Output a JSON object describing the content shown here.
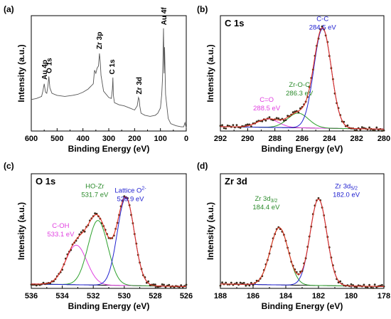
{
  "chart_data": [
    {
      "panel": "(a)",
      "type": "line",
      "title": "",
      "xlabel": "Binding Energy (eV)",
      "ylabel": "Intensity (a.u.)",
      "xlim": [
        600,
        0
      ],
      "xticks": [
        "600",
        "500",
        "400",
        "300",
        "200",
        "100",
        "0"
      ],
      "series": [
        {
          "color": "#555555",
          "x": [
            600,
            580,
            560,
            555,
            550,
            545,
            540,
            535,
            532,
            528,
            520,
            500,
            470,
            440,
            420,
            400,
            380,
            360,
            355,
            350,
            345,
            340,
            336,
            333,
            330,
            320,
            300,
            290,
            286,
            284,
            282,
            278,
            260,
            240,
            220,
            200,
            190,
            185,
            182,
            180,
            175,
            160,
            140,
            120,
            110,
            100,
            95,
            92,
            90,
            88,
            86,
            84,
            80,
            70,
            60,
            40,
            20,
            10,
            5,
            0
          ],
          "y": [
            0.3,
            0.31,
            0.33,
            0.38,
            0.45,
            0.37,
            0.36,
            0.44,
            0.52,
            0.41,
            0.36,
            0.34,
            0.33,
            0.34,
            0.35,
            0.37,
            0.4,
            0.45,
            0.58,
            0.55,
            0.6,
            0.62,
            0.74,
            0.66,
            0.53,
            0.38,
            0.32,
            0.31,
            0.4,
            0.51,
            0.34,
            0.27,
            0.25,
            0.24,
            0.22,
            0.2,
            0.24,
            0.32,
            0.3,
            0.24,
            0.17,
            0.15,
            0.14,
            0.15,
            0.17,
            0.22,
            0.35,
            0.5,
            0.72,
            0.98,
            0.55,
            0.8,
            0.35,
            0.12,
            0.07,
            0.05,
            0.04,
            0.04,
            0.08,
            0.03
          ]
        }
      ],
      "annotations": [
        {
          "text": "Au 4p",
          "x": 548,
          "y": 0.49,
          "color": "#000000",
          "vertical": true
        },
        {
          "text": "O 1s",
          "x": 530,
          "y": 0.55,
          "color": "#000000",
          "vertical": true
        },
        {
          "text": "Zr 3p",
          "x": 336,
          "y": 0.78,
          "color": "#000000",
          "vertical": true
        },
        {
          "text": "C 1s",
          "x": 286,
          "y": 0.54,
          "color": "#000000",
          "vertical": true
        },
        {
          "text": "Zr 3d",
          "x": 182,
          "y": 0.35,
          "color": "#000000",
          "vertical": true
        },
        {
          "text": "Au 4f",
          "x": 86,
          "y": 1.01,
          "color": "#000000",
          "vertical": true
        }
      ]
    },
    {
      "panel": "(b)",
      "type": "line",
      "title": "C 1s",
      "xlabel": "Binding Energy (eV)",
      "ylabel": "Intensity (a.u.)",
      "xlim": [
        292,
        280
      ],
      "xticks": [
        "292",
        "290",
        "288",
        "286",
        "284",
        "282",
        "280"
      ],
      "background": 0.03,
      "peaks": [
        {
          "name": "C=O",
          "center": 288.5,
          "height": 0.08,
          "fwhm": 1.8,
          "color": "#e040e0"
        },
        {
          "name": "Zr-O-C",
          "center": 286.3,
          "height": 0.14,
          "fwhm": 1.8,
          "color": "#2ca02c"
        },
        {
          "name": "C-C",
          "center": 284.5,
          "height": 0.95,
          "fwhm": 1.5,
          "color": "#2020d0"
        }
      ],
      "annotations": [
        {
          "lines": [
            "C=O",
            "288.5 eV"
          ],
          "x": 288.6,
          "y": 0.28,
          "color": "#e040e0"
        },
        {
          "lines": [
            "Zr-O-C",
            "286.3 eV"
          ],
          "x": 286.2,
          "y": 0.42,
          "color": "#2a8a2a"
        },
        {
          "lines": [
            "C-C",
            "284.5 eV"
          ],
          "x": 284.5,
          "y": 1.05,
          "color": "#2020d0"
        }
      ]
    },
    {
      "panel": "(c)",
      "type": "line",
      "title": "O 1s",
      "xlabel": "Binding Energy (eV)",
      "ylabel": "Intensity (a.u.)",
      "xlim": [
        536,
        526
      ],
      "xticks": [
        "536",
        "534",
        "532",
        "530",
        "528",
        "526"
      ],
      "background": 0.03,
      "peaks": [
        {
          "name": "C-OH",
          "center": 533.1,
          "height": 0.38,
          "fwhm": 1.6,
          "color": "#e040e0"
        },
        {
          "name": "HO-Zr",
          "center": 531.7,
          "height": 0.62,
          "fwhm": 1.5,
          "color": "#2ca02c"
        },
        {
          "name": "Lattice O",
          "center": 529.9,
          "height": 0.84,
          "fwhm": 1.3,
          "color": "#2020d0"
        }
      ],
      "annotations": [
        {
          "lines": [
            "C-OH",
            "533.1 eV"
          ],
          "x": 534.1,
          "y": 0.58,
          "color": "#e040e0"
        },
        {
          "lines": [
            "HO-Zr",
            "531.7 eV"
          ],
          "x": 531.9,
          "y": 0.96,
          "color": "#2a8a2a"
        },
        {
          "lines": [
            "Lattice O",
            "529.9 eV"
          ],
          "x": 529.6,
          "y": 0.92,
          "color": "#2020d0",
          "sup": "2-"
        }
      ]
    },
    {
      "panel": "(d)",
      "type": "line",
      "title": "Zr 3d",
      "xlabel": "Binding Energy (eV)",
      "ylabel": "Intensity (a.u.)",
      "xlim": [
        188,
        178
      ],
      "xticks": [
        "188",
        "186",
        "184",
        "182",
        "180",
        "178"
      ],
      "background": 0.03,
      "peaks": [
        {
          "name": "Zr 3d3/2",
          "center": 184.4,
          "height": 0.55,
          "fwhm": 1.3,
          "color": "#2ca02c"
        },
        {
          "name": "Zr 3d5/2",
          "center": 182.0,
          "height": 0.83,
          "fwhm": 1.2,
          "color": "#2020d0"
        }
      ],
      "annotations": [
        {
          "lines": [
            "Zr 3d",
            "184.4 eV"
          ],
          "x": 185.2,
          "y": 0.84,
          "color": "#2a8a2a",
          "sub": "3/2"
        },
        {
          "lines": [
            "Zr 3d",
            "182.0 eV"
          ],
          "x": 180.3,
          "y": 0.96,
          "color": "#2020d0",
          "sub": "5/2"
        }
      ]
    }
  ]
}
